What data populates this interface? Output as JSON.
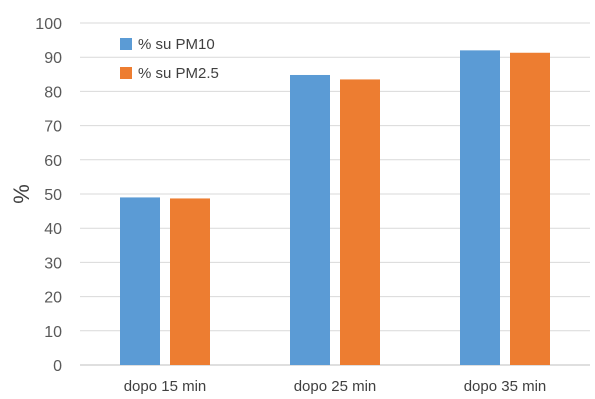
{
  "chart_data": {
    "type": "bar",
    "categories": [
      "dopo 15 min",
      "dopo 25 min",
      "dopo 35 min"
    ],
    "series": [
      {
        "name": "% su PM10",
        "values": [
          49,
          84.8,
          92
        ],
        "color": "#5B9BD5"
      },
      {
        "name": "% su PM2.5",
        "values": [
          48.7,
          83.5,
          91.3
        ],
        "color": "#ED7D31"
      }
    ],
    "ylabel": "%",
    "ylim": [
      0,
      100
    ],
    "yticks": [
      0,
      10,
      20,
      30,
      40,
      50,
      60,
      70,
      80,
      90,
      100
    ],
    "grid": true,
    "legend_position": "top-left"
  }
}
